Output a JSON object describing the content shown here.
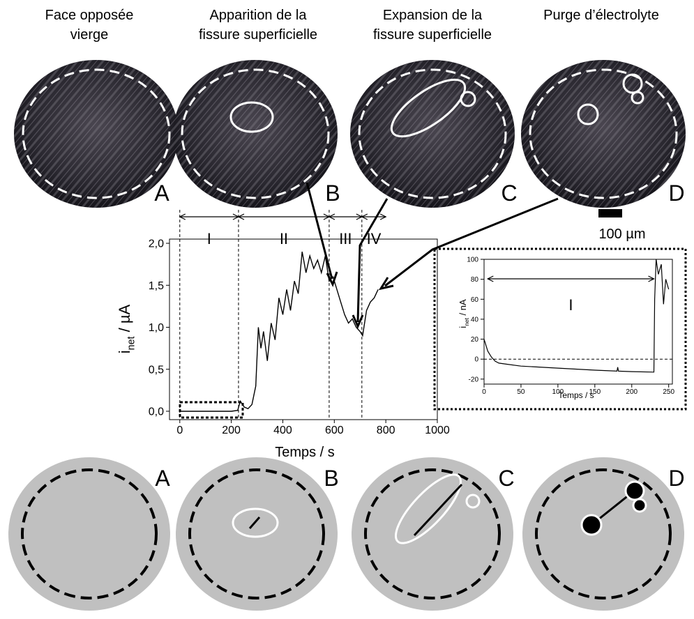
{
  "panels": {
    "titles": [
      [
        "Face opposée",
        "vierge"
      ],
      [
        "Apparition de la",
        "fissure superficielle"
      ],
      [
        "Expansion de la",
        "fissure superficielle"
      ],
      [
        "Purge d’électrolyte"
      ]
    ],
    "letters": [
      "A",
      "B",
      "C",
      "D"
    ],
    "scale_bar": "100 µm"
  },
  "chart_data": [
    {
      "type": "line",
      "x_label": "Temps / s",
      "y_label": "i",
      "y_label_sub": "net",
      "y_label_unit": " / µA",
      "xlim": [
        -40,
        1000
      ],
      "ylim": [
        -0.1,
        2.05
      ],
      "xticks": [
        0,
        200,
        400,
        600,
        800,
        1000
      ],
      "yticks": [
        {
          "value": 0,
          "label": "0,0"
        },
        {
          "value": 0.5,
          "label": "0,5"
        },
        {
          "value": 1,
          "label": "1,0"
        },
        {
          "value": 1.5,
          "label": "1,5"
        },
        {
          "value": 2,
          "label": "2,0"
        }
      ],
      "regions": [
        {
          "label": "I",
          "from": 0,
          "to": 228
        },
        {
          "label": "II",
          "from": 228,
          "to": 580
        },
        {
          "label": "III",
          "from": 580,
          "to": 707
        },
        {
          "label": "IV",
          "from": 707,
          "to": 800
        }
      ],
      "series": [
        {
          "color": "#000000",
          "x": [
            0,
            50,
            100,
            150,
            200,
            225,
            235,
            250,
            265,
            280,
            295,
            305,
            315,
            325,
            340,
            355,
            370,
            385,
            400,
            415,
            430,
            445,
            460,
            475,
            490,
            505,
            520,
            535,
            550,
            565,
            580,
            595,
            610,
            625,
            640,
            655,
            670,
            685,
            700,
            710,
            725,
            740,
            755,
            770
          ],
          "values": [
            0,
            0,
            0,
            0,
            0,
            0.01,
            0.12,
            0.05,
            0.03,
            0.08,
            0.3,
            1.0,
            0.75,
            0.95,
            0.6,
            1.05,
            0.85,
            1.35,
            1.15,
            1.45,
            1.2,
            1.55,
            1.4,
            1.9,
            1.65,
            1.85,
            1.7,
            1.8,
            1.65,
            1.85,
            1.55,
            1.6,
            1.45,
            1.3,
            1.15,
            1.05,
            1.1,
            1.0,
            0.95,
            0.9,
            1.2,
            1.3,
            1.35,
            1.45
          ]
        }
      ]
    },
    {
      "type": "line",
      "x_label": "Temps / s",
      "y_label": "i",
      "y_label_sub": "net",
      "y_label_unit": " / nA",
      "xlim": [
        0,
        255
      ],
      "ylim": [
        -25,
        100
      ],
      "xticks": [
        0,
        50,
        100,
        150,
        200,
        250
      ],
      "yticks": [
        -20,
        0,
        20,
        40,
        60,
        80,
        100
      ],
      "hline": 0,
      "regions": [
        {
          "label": "I",
          "from": 5,
          "to": 230
        }
      ],
      "series": [
        {
          "color": "#000000",
          "x": [
            0,
            5,
            10,
            15,
            20,
            30,
            50,
            100,
            150,
            180,
            181,
            182,
            200,
            230,
            231,
            233,
            236,
            240,
            243,
            246,
            250
          ],
          "values": [
            20,
            8,
            2,
            -2,
            -4,
            -5,
            -7,
            -9,
            -11,
            -12,
            -8,
            -12,
            -12.5,
            -13,
            60,
            100,
            85,
            95,
            55,
            80,
            70
          ]
        }
      ]
    }
  ]
}
